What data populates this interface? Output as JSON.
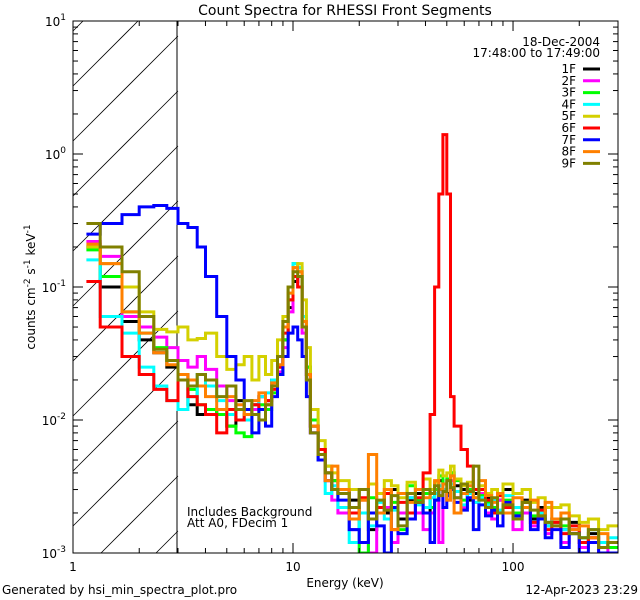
{
  "chart_data": {
    "type": "line",
    "step": true,
    "title": "Count Spectra for RHESSI Front Segments",
    "xlabel": "Energy (keV)",
    "ylabel": {
      "base": "counts cm",
      "e1": "-2",
      "s": " s",
      "e2": "-1",
      "k": " keV",
      "e3": "-1"
    },
    "xscale": "log",
    "yscale": "log",
    "xlim": [
      1,
      300
    ],
    "ylim": [
      0.001,
      10
    ],
    "x_ticks": [
      {
        "value": 1,
        "label": "1"
      },
      {
        "value": 10,
        "label": "10"
      },
      {
        "value": 100,
        "label": "100"
      }
    ],
    "y_ticks": [
      {
        "value": 10,
        "base": "10",
        "exp": "1"
      },
      {
        "value": 1,
        "base": "10",
        "exp": "0"
      },
      {
        "value": 0.1,
        "base": "10",
        "exp": "-1"
      },
      {
        "value": 0.01,
        "base": "10",
        "exp": "-2"
      },
      {
        "value": 0.001,
        "base": "10",
        "exp": "-3"
      }
    ],
    "hatched_region_keV": [
      1,
      3
    ],
    "legend_position": "top-right",
    "date": "18-Dec-2004",
    "time_range": "17:48:00 to 17:49:00",
    "annotations": [
      "Includes Background",
      "Att A0, FDecim 1"
    ],
    "energy_edges_keV": [
      1.15,
      1.33,
      1.67,
      2,
      2.33,
      2.67,
      3,
      3.33,
      3.67,
      4,
      4.5,
      5,
      5.5,
      6,
      6.5,
      7,
      7.5,
      8,
      8.5,
      9,
      9.5,
      10,
      10.5,
      11,
      11.5,
      12,
      13,
      14,
      15,
      16,
      18,
      20,
      22,
      24,
      26,
      28,
      30,
      33,
      36,
      39,
      42,
      44,
      46,
      48,
      50,
      52,
      54,
      58,
      62,
      66,
      70,
      75,
      80,
      85,
      90,
      100,
      110,
      120,
      130,
      140,
      150,
      165,
      180,
      200,
      220,
      245,
      270,
      300
    ],
    "series": [
      {
        "name": "1F",
        "color": "#000000",
        "values": [
          0.2,
          0.1,
          0.055,
          0.04,
          0.032,
          0.025,
          0.022,
          0.013,
          0.011,
          0.012,
          0.011,
          0.009,
          0.014,
          0.012,
          0.013,
          0.015,
          0.014,
          0.02,
          0.025,
          0.04,
          0.07,
          0.11,
          0.12,
          0.05,
          0.025,
          0.009,
          0.006,
          0.004,
          0.0035,
          0.003,
          0.0025,
          0.003,
          0.0015,
          0.0022,
          0.002,
          0.003,
          0.0018,
          0.0025,
          0.0028,
          0.002,
          0.003,
          0.0025,
          0.0035,
          0.003,
          0.0028,
          0.004,
          0.0032,
          0.003,
          0.0025,
          0.0028,
          0.003,
          0.0026,
          0.0022,
          0.0025,
          0.003,
          0.002,
          0.0025,
          0.0018,
          0.0022,
          0.0016,
          0.0018,
          0.0015,
          0.0017,
          0.0012,
          0.0014,
          0.0011,
          0.0012
        ]
      },
      {
        "name": "2F",
        "color": "#ff00ff",
        "values": [
          0.22,
          0.17,
          0.06,
          0.05,
          0.042,
          0.035,
          0.028,
          0.025,
          0.03,
          0.024,
          0.018,
          0.014,
          0.012,
          0.011,
          0.012,
          0.015,
          0.014,
          0.018,
          0.023,
          0.035,
          0.065,
          0.12,
          0.1,
          0.045,
          0.02,
          0.008,
          0.005,
          0.0035,
          0.0025,
          0.002,
          0.0015,
          0.0025,
          0.001,
          0.002,
          0.0022,
          0.0012,
          0.002,
          0.0026,
          0.002,
          0.0015,
          0.002,
          0.0028,
          0.0012,
          0.003,
          0.0025,
          0.0035,
          0.0026,
          0.0022,
          0.003,
          0.0024,
          0.0028,
          0.002,
          0.0018,
          0.0025,
          0.0022,
          0.0015,
          0.002,
          0.0016,
          0.0019,
          0.0014,
          0.0016,
          0.0012,
          0.0015,
          0.0011,
          0.0013,
          0.001,
          0.0011
        ]
      },
      {
        "name": "3F",
        "color": "#00ff00",
        "values": [
          0.19,
          0.12,
          0.065,
          0.045,
          0.035,
          0.028,
          0.02,
          0.017,
          0.013,
          0.012,
          0.011,
          0.009,
          0.008,
          0.0075,
          0.011,
          0.013,
          0.012,
          0.016,
          0.022,
          0.04,
          0.08,
          0.15,
          0.13,
          0.06,
          0.025,
          0.01,
          0.006,
          0.0045,
          0.0035,
          0.003,
          0.0022,
          0.001,
          0.0026,
          0.002,
          0.0028,
          0.0024,
          0.0015,
          0.0032,
          0.0025,
          0.0028,
          0.0022,
          0.003,
          0.0038,
          0.0033,
          0.0036,
          0.004,
          0.0035,
          0.0025,
          0.003,
          0.0026,
          0.0027,
          0.0024,
          0.0022,
          0.0028,
          0.0025,
          0.002,
          0.0024,
          0.0019,
          0.0021,
          0.0017,
          0.0017,
          0.0016,
          0.0014,
          0.0013,
          0.0012,
          0.0012,
          0.0011
        ]
      },
      {
        "name": "4F",
        "color": "#00ffff",
        "values": [
          0.16,
          0.06,
          0.045,
          0.025,
          0.018,
          0.014,
          0.012,
          0.015,
          0.022,
          0.018,
          0.014,
          0.011,
          0.012,
          0.01,
          0.013,
          0.015,
          0.016,
          0.02,
          0.03,
          0.05,
          0.09,
          0.15,
          0.14,
          0.06,
          0.022,
          0.009,
          0.005,
          0.0028,
          0.0032,
          0.0022,
          0.0012,
          0.002,
          0.0016,
          0.0024,
          0.0018,
          0.0021,
          0.0014,
          0.0026,
          0.0023,
          0.0022,
          0.0026,
          0.0028,
          0.0032,
          0.003,
          0.0027,
          0.0033,
          0.0029,
          0.0023,
          0.0028,
          0.0024,
          0.0026,
          0.0023,
          0.0025,
          0.0021,
          0.0027,
          0.0022,
          0.0024,
          0.0017,
          0.002,
          0.0016,
          0.0018,
          0.0015,
          0.0016,
          0.0013,
          0.0015,
          0.0012,
          0.0013
        ]
      },
      {
        "name": "5F",
        "color": "#d4d000",
        "values": [
          0.2,
          0.15,
          0.1,
          0.065,
          0.048,
          0.046,
          0.05,
          0.04,
          0.041,
          0.045,
          0.03,
          0.024,
          0.026,
          0.03,
          0.02,
          0.03,
          0.022,
          0.028,
          0.04,
          0.06,
          0.1,
          0.14,
          0.15,
          0.08,
          0.035,
          0.012,
          0.007,
          0.0045,
          0.004,
          0.0035,
          0.003,
          0.0025,
          0.0033,
          0.0028,
          0.0035,
          0.0032,
          0.0026,
          0.0034,
          0.003,
          0.0036,
          0.003,
          0.0034,
          0.0042,
          0.0038,
          0.004,
          0.0045,
          0.0036,
          0.0032,
          0.0034,
          0.003,
          0.0032,
          0.0028,
          0.003,
          0.0027,
          0.0033,
          0.0028,
          0.003,
          0.0024,
          0.0026,
          0.0022,
          0.0022,
          0.0023,
          0.0019,
          0.0017,
          0.0018,
          0.0015,
          0.0016
        ]
      },
      {
        "name": "6F",
        "color": "#ff0000",
        "values": [
          0.11,
          0.05,
          0.03,
          0.022,
          0.017,
          0.014,
          0.02,
          0.015,
          0.013,
          0.011,
          0.008,
          0.012,
          0.01,
          0.011,
          0.013,
          0.012,
          0.014,
          0.017,
          0.025,
          0.045,
          0.08,
          0.12,
          0.1,
          0.05,
          0.022,
          0.009,
          0.006,
          0.004,
          0.003,
          0.0028,
          0.002,
          0.0026,
          0.0018,
          0.0022,
          0.0028,
          0.0015,
          0.0024,
          0.002,
          0.0026,
          0.004,
          0.011,
          0.1,
          0.5,
          1.4,
          0.5,
          0.015,
          0.009,
          0.006,
          0.0045,
          0.003,
          0.003,
          0.0025,
          0.002,
          0.0027,
          0.0022,
          0.0018,
          0.0024,
          0.0017,
          0.0021,
          0.0015,
          0.0017,
          0.0014,
          0.0016,
          0.0012,
          0.0013,
          0.0011,
          0.0012
        ]
      },
      {
        "name": "7F",
        "color": "#0000ff",
        "values": [
          0.25,
          0.3,
          0.35,
          0.4,
          0.41,
          0.39,
          0.3,
          0.28,
          0.2,
          0.12,
          0.06,
          0.03,
          0.02,
          0.012,
          0.008,
          0.012,
          0.009,
          0.015,
          0.022,
          0.03,
          0.045,
          0.05,
          0.04,
          0.03,
          0.015,
          0.008,
          0.005,
          0.0035,
          0.003,
          0.0025,
          0.0015,
          0.0012,
          0.002,
          0.0016,
          0.001,
          0.0022,
          0.0014,
          0.0018,
          0.0024,
          0.002,
          0.0012,
          0.0025,
          0.003,
          0.0022,
          0.0027,
          0.003,
          0.0024,
          0.0021,
          0.0026,
          0.0015,
          0.0023,
          0.0019,
          0.0021,
          0.0016,
          0.0024,
          0.0019,
          0.0022,
          0.0015,
          0.0018,
          0.0013,
          0.0015,
          0.0011,
          0.0014,
          0.001,
          0.0012,
          0.001,
          0.001
        ]
      },
      {
        "name": "8F",
        "color": "#ff8000",
        "values": [
          0.21,
          0.15,
          0.065,
          0.045,
          0.032,
          0.026,
          0.022,
          0.02,
          0.018,
          0.015,
          0.012,
          0.015,
          0.013,
          0.011,
          0.014,
          0.016,
          0.013,
          0.019,
          0.026,
          0.05,
          0.09,
          0.14,
          0.13,
          0.055,
          0.022,
          0.009,
          0.0055,
          0.0035,
          0.0045,
          0.003,
          0.0018,
          0.0025,
          0.0055,
          0.002,
          0.003,
          0.0015,
          0.0028,
          0.0024,
          0.003,
          0.0026,
          0.0028,
          0.0035,
          0.003,
          0.0033,
          0.0025,
          0.0038,
          0.002,
          0.0028,
          0.0032,
          0.0026,
          0.0035,
          0.0027,
          0.0024,
          0.0028,
          0.002,
          0.0026,
          0.0022,
          0.0025,
          0.0019,
          0.0024,
          0.0018,
          0.002,
          0.0015,
          0.0016,
          0.0013,
          0.0014,
          0.0012
        ]
      },
      {
        "name": "9F",
        "color": "#808000",
        "values": [
          0.3,
          0.2,
          0.13,
          0.06,
          0.034,
          0.028,
          0.02,
          0.018,
          0.022,
          0.02,
          0.015,
          0.018,
          0.012,
          0.014,
          0.011,
          0.01,
          0.013,
          0.018,
          0.03,
          0.055,
          0.1,
          0.13,
          0.12,
          0.05,
          0.02,
          0.008,
          0.0055,
          0.004,
          0.003,
          0.0028,
          0.0022,
          0.003,
          0.0018,
          0.0025,
          0.0021,
          0.0027,
          0.0016,
          0.0028,
          0.0024,
          0.003,
          0.0028,
          0.0032,
          0.0027,
          0.0029,
          0.0035,
          0.0031,
          0.0026,
          0.0033,
          0.0029,
          0.0045,
          0.0025,
          0.0022,
          0.0026,
          0.002,
          0.0023,
          0.0018,
          0.0024,
          0.0021,
          0.0019,
          0.0017,
          0.0016,
          0.0018,
          0.0014,
          0.0013,
          0.0015,
          0.0011,
          0.0012
        ]
      }
    ]
  },
  "footer": {
    "generated_by": "Generated by hsi_min_spectra_plot.pro",
    "timestamp": "12-Apr-2023 23:29"
  }
}
